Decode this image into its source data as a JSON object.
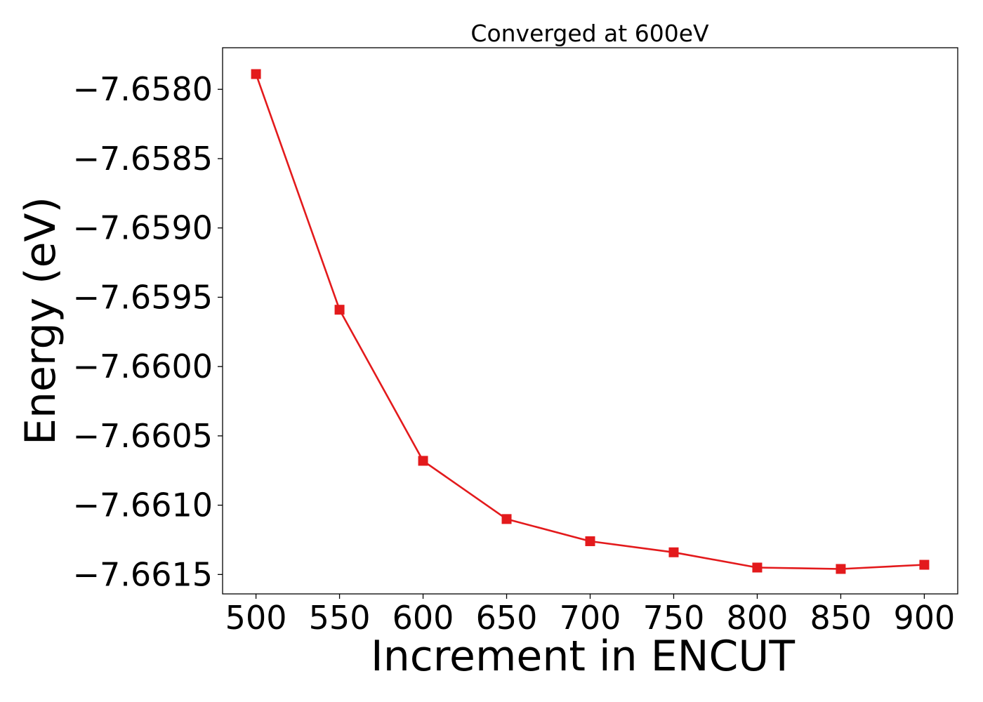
{
  "chart_data": {
    "type": "line",
    "title": "Converged at 600eV",
    "xlabel": "Increment in ENCUT",
    "ylabel": "Energy (eV)",
    "x": [
      500,
      550,
      600,
      650,
      700,
      750,
      800,
      850,
      900
    ],
    "series": [
      {
        "values": [
          -7.65789,
          -7.65959,
          -7.66068,
          -7.6611,
          -7.66126,
          -7.66134,
          -7.66145,
          -7.66146,
          -7.66143
        ],
        "color": "#e31a1c",
        "marker": "square"
      }
    ],
    "xticks": [
      500,
      550,
      600,
      650,
      700,
      750,
      800,
      850,
      900
    ],
    "xtick_labels": [
      "500",
      "550",
      "600",
      "650",
      "700",
      "750",
      "800",
      "850",
      "900"
    ],
    "yticks": [
      -7.658,
      -7.6585,
      -7.659,
      -7.6595,
      -7.66,
      -7.6605,
      -7.661,
      -7.6615
    ],
    "ytick_labels": [
      "−7.6580",
      "−7.6585",
      "−7.6590",
      "−7.6595",
      "−7.6600",
      "−7.6605",
      "−7.6610",
      "−7.6615"
    ],
    "xlim": [
      480,
      920
    ],
    "ylim": [
      -7.66164,
      -7.6577
    ],
    "grid": false,
    "legend": "none"
  }
}
